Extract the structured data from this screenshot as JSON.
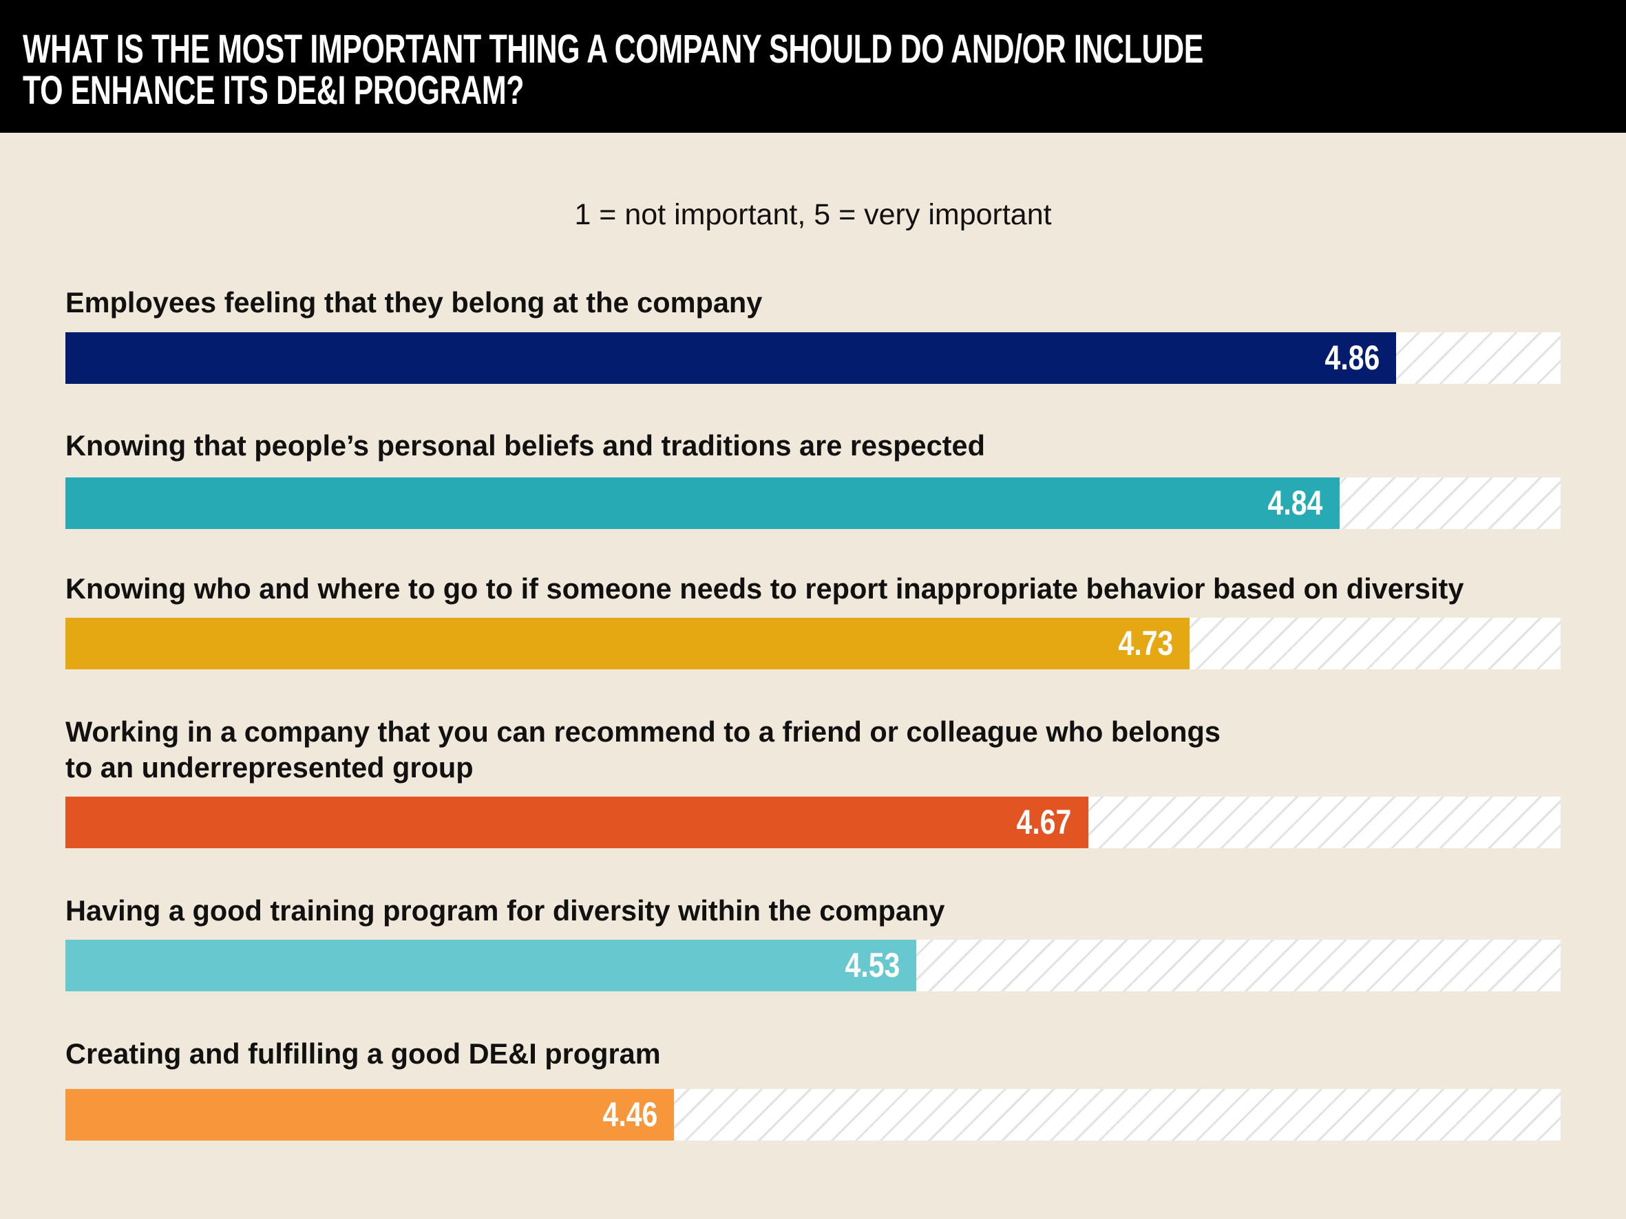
{
  "chart_data": {
    "type": "bar",
    "orientation": "horizontal",
    "title": [
      "WHAT IS THE MOST IMPORTANT THING A COMPANY SHOULD DO AND/OR INCLUDE",
      "TO ENHANCE ITS DE&I PROGRAM?"
    ],
    "subtitle": "1 = not important, 5 = very important",
    "categories": [
      [
        "Employees feeling that they belong at the company"
      ],
      [
        "Knowing that people’s personal beliefs and traditions are respected"
      ],
      [
        "Knowing who and where to go to if someone needs to report inappropriate behavior based on diversity"
      ],
      [
        "Working in a company that you can recommend to a friend or colleague who belongs",
        "to an underrepresented group"
      ],
      [
        "Having a good training program for diversity within the company"
      ],
      [
        "Creating and fulfilling a good DE&I program"
      ]
    ],
    "values": [
      "4.86",
      "4.84",
      "4.73",
      "4.67",
      "4.53",
      "4.46"
    ],
    "fill_fraction": [
      0.89,
      0.852,
      0.752,
      0.684,
      0.569,
      0.407
    ],
    "colors": [
      "#031C6E",
      "#27AAB4",
      "#E5A712",
      "#E25522",
      "#68C8CF",
      "#F7963A"
    ]
  }
}
